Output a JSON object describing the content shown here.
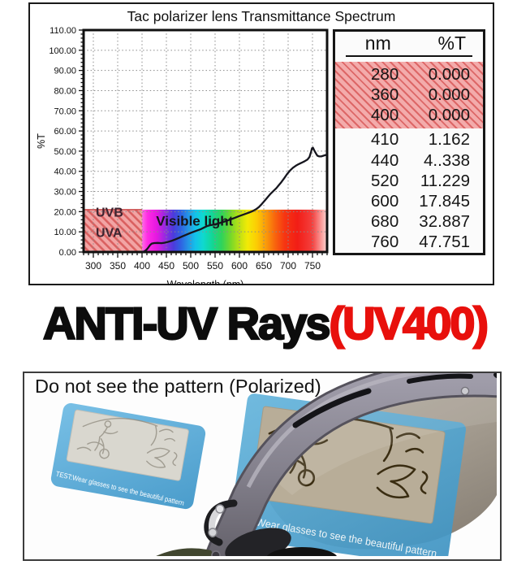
{
  "chart_data": {
    "type": "line",
    "title": "Tac polarizer lens Transmittance Spectrum",
    "xlabel": "Wavelength (nm)",
    "ylabel": "%T",
    "xlim": [
      280,
      780
    ],
    "ylim": [
      0,
      110
    ],
    "x_ticks": [
      300,
      350,
      400,
      450,
      500,
      550,
      600,
      650,
      700,
      750
    ],
    "y_ticks": [
      0,
      10,
      20,
      30,
      40,
      50,
      60,
      70,
      80,
      90,
      100,
      110
    ],
    "y_tick_labels": [
      "0.00",
      "10.00",
      "20.00",
      "30.00",
      "40.00",
      "50.00",
      "60.00",
      "70.00",
      "80.00",
      "90.00",
      "100.00",
      "110.00"
    ],
    "grid": true,
    "curve_color": "#16161e",
    "regions": [
      {
        "name": "uv",
        "x0": 280,
        "x1": 400,
        "y0": 0,
        "y1": 21,
        "style": "hatched-red",
        "labels": [
          "UVB",
          "UVA"
        ]
      },
      {
        "name": "visible",
        "x0": 400,
        "x1": 780,
        "y0": 0,
        "y1": 21,
        "style": "spectrum-gradient",
        "label": "Visible light"
      }
    ],
    "series": [
      {
        "name": "transmittance",
        "points": [
          [
            400,
            0
          ],
          [
            404,
            0.3
          ],
          [
            408,
            0.9
          ],
          [
            411,
            1.6
          ],
          [
            414,
            2.6
          ],
          [
            417,
            3.6
          ],
          [
            420,
            4.2
          ],
          [
            425,
            4.45
          ],
          [
            432,
            4.5
          ],
          [
            440,
            4.4
          ],
          [
            446,
            4.6
          ],
          [
            452,
            4.9
          ],
          [
            460,
            5.5
          ],
          [
            468,
            6.2
          ],
          [
            476,
            7.0
          ],
          [
            484,
            7.9
          ],
          [
            492,
            8.7
          ],
          [
            500,
            9.5
          ],
          [
            510,
            10.4
          ],
          [
            520,
            11.23
          ],
          [
            528,
            12.2
          ],
          [
            534,
            12.9
          ],
          [
            540,
            13.3
          ],
          [
            548,
            13.6
          ],
          [
            556,
            14.1
          ],
          [
            564,
            14.7
          ],
          [
            572,
            15.3
          ],
          [
            580,
            16.0
          ],
          [
            590,
            16.9
          ],
          [
            600,
            17.85
          ],
          [
            610,
            18.7
          ],
          [
            620,
            19.6
          ],
          [
            628,
            20.4
          ],
          [
            634,
            21.2
          ],
          [
            640,
            22.3
          ],
          [
            646,
            23.8
          ],
          [
            652,
            25.5
          ],
          [
            658,
            27.2
          ],
          [
            664,
            28.9
          ],
          [
            670,
            30.3
          ],
          [
            676,
            31.7
          ],
          [
            680,
            32.89
          ],
          [
            686,
            34.6
          ],
          [
            692,
            36.6
          ],
          [
            698,
            38.7
          ],
          [
            704,
            40.4
          ],
          [
            710,
            41.8
          ],
          [
            716,
            42.8
          ],
          [
            722,
            43.6
          ],
          [
            728,
            44.3
          ],
          [
            734,
            45.0
          ],
          [
            740,
            45.9
          ],
          [
            744,
            47.2
          ],
          [
            747,
            49.6
          ],
          [
            749,
            51.4
          ],
          [
            751,
            51.7
          ],
          [
            754,
            50.2
          ],
          [
            757,
            48.9
          ],
          [
            760,
            47.75
          ],
          [
            764,
            47.4
          ],
          [
            768,
            47.4
          ],
          [
            772,
            47.7
          ],
          [
            776,
            48.0
          ],
          [
            780,
            48.3
          ]
        ]
      }
    ]
  },
  "table": {
    "columns": [
      "nm",
      "%T"
    ],
    "rows": [
      {
        "nm": "280",
        "t": "0.000",
        "highlight": true
      },
      {
        "nm": "360",
        "t": "0.000",
        "highlight": true
      },
      {
        "nm": "400",
        "t": "0.000",
        "highlight": true
      },
      {
        "nm": "410",
        "t": "1.162",
        "highlight": false
      },
      {
        "nm": "440",
        "t": "4..338",
        "highlight": false
      },
      {
        "nm": "520",
        "t": "11.229",
        "highlight": false
      },
      {
        "nm": "600",
        "t": "17.845",
        "highlight": false
      },
      {
        "nm": "680",
        "t": "32.887",
        "highlight": false
      },
      {
        "nm": "760",
        "t": "47.751",
        "highlight": false
      }
    ]
  },
  "headline": {
    "text_black": "ANTI-UV Rays",
    "text_red": "(UV400)",
    "red_color": "#e8100c"
  },
  "photo": {
    "caption": "Do not see the pattern (Polarized)",
    "card_text_left": "TEST:Wear glasses to see the beautiful pattern",
    "card_text_right": "EST:Wear glasses to see the beautiful pattern",
    "colors": {
      "card_blue": "#58abd7",
      "lens": "#a59e92",
      "frame": "#8e8b97"
    }
  }
}
